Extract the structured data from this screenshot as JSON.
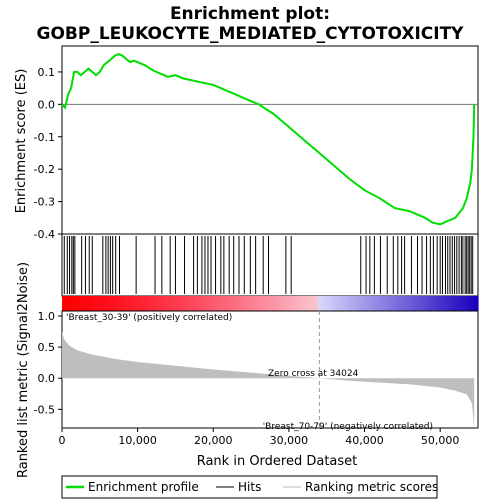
{
  "title_line1": "Enrichment plot:",
  "title_line2": "GOBP_LEUKOCYTE_MEDIATED_CYTOTOXICITY",
  "colors": {
    "es_line": "#00dd00",
    "hit": "#000000",
    "metric_fill": "#bebebe",
    "pos_label": "#cc0000",
    "neg_label": "#2222aa",
    "zero_cross_line": "#999999"
  },
  "legend": {
    "items": [
      {
        "label": "Enrichment profile",
        "color": "#00dd00",
        "kind": "line-thick"
      },
      {
        "label": "Hits",
        "color": "#000000",
        "kind": "line"
      },
      {
        "label": "Ranking metric scores",
        "color": "#bebebe",
        "kind": "line"
      }
    ]
  },
  "chart_data": [
    {
      "type": "line",
      "name": "enrichment-profile",
      "ylabel": "Enrichment score (ES)",
      "ylim": [
        -0.4,
        0.18
      ],
      "xlim": [
        0,
        55000
      ],
      "yticks": [
        -0.4,
        -0.3,
        -0.2,
        -0.1,
        0.0,
        0.1
      ],
      "grid": false,
      "series": [
        {
          "x": [
            0,
            400,
            800,
            1200,
            1600,
            2000,
            2500,
            3000,
            3500,
            4000,
            4500,
            5000,
            5500,
            6000,
            6500,
            7000,
            7500,
            8000,
            8500,
            9000,
            9500,
            10000,
            11000,
            12000,
            13000,
            14000,
            15000,
            16000,
            17000,
            18000,
            19000,
            20000,
            21000,
            22000,
            23000,
            24000,
            26000,
            28000,
            30000,
            32000,
            34024,
            36000,
            38000,
            40000,
            42000,
            44000,
            46000,
            48000,
            49000,
            50000,
            51000,
            52000,
            53000,
            53500,
            54000,
            54200,
            54400,
            54500
          ],
          "y": [
            0.0,
            -0.01,
            0.03,
            0.05,
            0.1,
            0.1,
            0.09,
            0.1,
            0.11,
            0.1,
            0.09,
            0.1,
            0.12,
            0.13,
            0.14,
            0.15,
            0.155,
            0.15,
            0.14,
            0.13,
            0.135,
            0.13,
            0.12,
            0.105,
            0.095,
            0.085,
            0.09,
            0.08,
            0.075,
            0.07,
            0.065,
            0.06,
            0.05,
            0.04,
            0.03,
            0.02,
            0.0,
            -0.03,
            -0.07,
            -0.11,
            -0.15,
            -0.19,
            -0.23,
            -0.265,
            -0.29,
            -0.32,
            -0.33,
            -0.35,
            -0.365,
            -0.37,
            -0.36,
            -0.35,
            -0.32,
            -0.29,
            -0.24,
            -0.2,
            -0.1,
            0.0
          ]
        }
      ]
    },
    {
      "type": "scatter",
      "name": "hits",
      "xlim": [
        0,
        55000
      ],
      "x": [
        300,
        700,
        1000,
        1300,
        1500,
        1700,
        2600,
        3100,
        3600,
        4000,
        5400,
        5800,
        6100,
        6400,
        6700,
        7100,
        7600,
        9800,
        12300,
        13200,
        14300,
        15000,
        16200,
        17400,
        17900,
        18500,
        18900,
        19300,
        19700,
        20300,
        21000,
        21400,
        22100,
        22700,
        23400,
        24100,
        24900,
        25600,
        26600,
        27300,
        29600,
        30300,
        39500,
        40200,
        40700,
        41300,
        42100,
        43000,
        43800,
        44400,
        44900,
        45300,
        46200,
        47000,
        47600,
        48200,
        48700,
        49100,
        49600,
        50000,
        50300,
        50700,
        51000,
        51300,
        51600,
        51900,
        52200,
        52500,
        52800,
        53000,
        53300,
        53500,
        53700,
        53900,
        54100,
        54300
      ]
    },
    {
      "type": "area",
      "name": "ranked-list-metric",
      "ylabel": "Ranked list metric (Signal2Noise)",
      "xlabel": "Rank in Ordered Dataset",
      "xlim": [
        0,
        55000
      ],
      "ylim": [
        -0.8,
        1.08
      ],
      "xticks": [
        0,
        10000,
        20000,
        30000,
        40000,
        50000
      ],
      "xtick_labels": [
        "0",
        "10,000",
        "20,000",
        "30,000",
        "40,000",
        "50,000"
      ],
      "yticks": [
        -0.5,
        0.0,
        0.5,
        1.0
      ],
      "series": [
        {
          "x": [
            0,
            300,
            1000,
            2000,
            4000,
            7000,
            10000,
            15000,
            20000,
            25000,
            30000,
            34024,
            38000,
            42000,
            46000,
            50000,
            52000,
            53500,
            54200,
            54500
          ],
          "y": [
            0.75,
            0.62,
            0.52,
            0.45,
            0.38,
            0.31,
            0.26,
            0.2,
            0.14,
            0.09,
            0.04,
            0.0,
            -0.04,
            -0.07,
            -0.1,
            -0.15,
            -0.2,
            -0.26,
            -0.4,
            -0.8
          ]
        }
      ],
      "annotations": {
        "zero_cross": "Zero cross at 34024",
        "zero_cross_x": 34024,
        "pos_label": "'Breast_30-39' (positively correlated)",
        "neg_label": "'Breast_70-79' (negatively correlated)"
      }
    }
  ]
}
